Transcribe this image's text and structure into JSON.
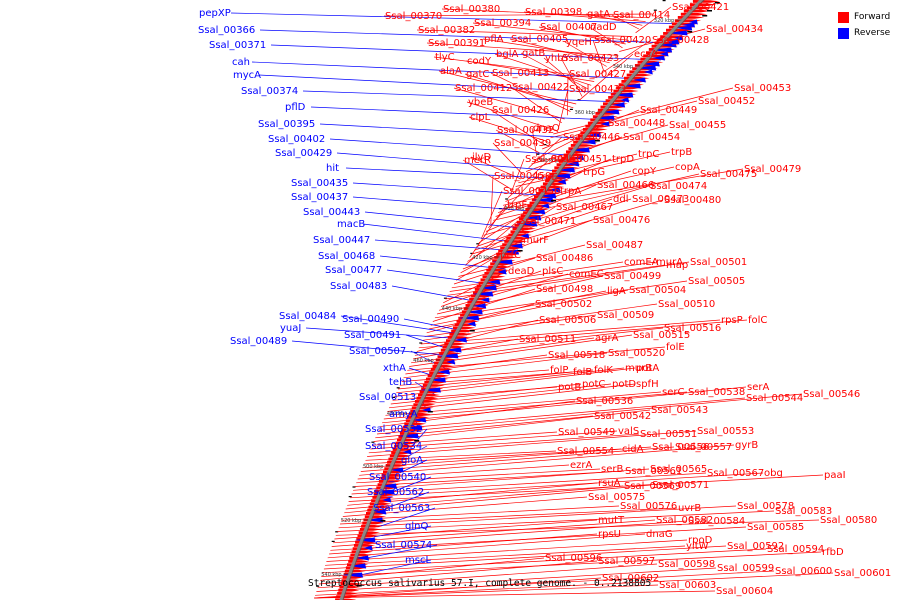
{
  "caption": "Streptococcus salivarius 57.I, complete genome. - 0..2138805",
  "legend": [
    {
      "label": "Forward",
      "color": "#ff0000"
    },
    {
      "label": "Reverse",
      "color": "#0000ff"
    }
  ],
  "colors": {
    "forward": "#ff0000",
    "reverse": "#0000ff",
    "backbone": "#888888"
  },
  "kbp_ticks": [
    "320 kbp",
    "340 kbp",
    "360 kbp",
    "380 kbp",
    "400 kbp",
    "420 kbp",
    "440 kbp",
    "460 kbp",
    "480 kbp",
    "500 kbp",
    "520 kbp",
    "540 kbp"
  ],
  "reverse_labels": [
    "pepXP",
    "Ssal_00366",
    "Ssal_00371",
    "cah",
    "mycA",
    "Ssal_00374",
    "pflD",
    "Ssal_00395",
    "Ssal_00402",
    "Ssal_00429",
    "hit",
    "Ssal_00435",
    "Ssal_00437",
    "Ssal_00443",
    "macB",
    "Ssal_00447",
    "Ssal_00468",
    "Ssal_00477",
    "Ssal_00483",
    "Ssal_00484",
    "yuaJ",
    "Ssal_00490",
    "Ssal_00489",
    "Ssal_00491",
    "Ssal_00507",
    "xthA",
    "tehB",
    "Ssal_00513",
    "amyA",
    "Ssal_00532",
    "Ssal_00534",
    "gloA",
    "Ssal_00540",
    "Ssal_00562",
    "Ssal_00563",
    "glnQ",
    "Ssal_00574",
    "mscL"
  ],
  "forward_labels": [
    "Ssal_00370",
    "Ssal_00380",
    "Ssal_00398",
    "gatA",
    "Ssal_00414",
    "Ssal_00421",
    "Ssal_00382",
    "Ssal_00394",
    "Ssal_00407",
    "nadD",
    "Ssal_00434",
    "Ssal_00391",
    "pflA",
    "Ssal_00405",
    "yqeH",
    "Ssal_00420",
    "Ssal_00428",
    "tlyC",
    "codY",
    "bglA",
    "gatB",
    "yhbY",
    "Ssal_00423",
    "ecsA",
    "alaA",
    "gatC",
    "Ssal_00413",
    "Ssal_00427",
    "Ssal_00412",
    "Ssal_00422",
    "Ssal_00433",
    "ybeB",
    "Ssal_00453",
    "Ssal_00452",
    "clpL",
    "Ssal_00426",
    "Ssal_00449",
    "Ssal_00432",
    "dnaQ",
    "Ssal_00448",
    "Ssal_00455",
    "Ssal_00446",
    "Ssal_00454",
    "Ssal_00439",
    "ilvD",
    "trpC",
    "trpB",
    "merR",
    "Ssal_00445",
    "Ssal_00451",
    "trpD",
    "copA",
    "Ssal_00479",
    "trpG",
    "copY",
    "Ssal_00475",
    "Ssal_00450",
    "trpE",
    "Ssal_00466",
    "Ssal_00474",
    "Ssal_00456",
    "trpA",
    "ddl",
    "Ssal_00473",
    "Ssal_00480",
    "trpF",
    "Ssal_00467",
    "Ssal_00471",
    "Ssal_00476",
    "murF",
    "Ssal_00487",
    "prfC",
    "Ssal_00486",
    "comEA",
    "murA",
    "map",
    "Ssal_00501",
    "deaD",
    "plsC",
    "comEC",
    "Ssal_00499",
    "Ssal_00505",
    "Ssal_00498",
    "ligA",
    "Ssal_00504",
    "Ssal_00502",
    "Ssal_00510",
    "Ssal_00509",
    "rpsP",
    "folC",
    "Ssal_00506",
    "Ssal_00516",
    "Ssal_00511",
    "agrA",
    "Ssal_00515",
    "folE",
    "Ssal_00518",
    "Ssal_00520",
    "folP",
    "folB",
    "folK",
    "murB",
    "potA",
    "potB",
    "potC",
    "potD",
    "spfH",
    "serC",
    "Ssal_00538",
    "serA",
    "Ssal_00536",
    "Ssal_00544",
    "Ssal_00546",
    "Ssal_00542",
    "Ssal_00543",
    "Ssal_00549",
    "valS",
    "Ssal_00551",
    "Ssal_00553",
    "Ssal_00554",
    "cidA",
    "Ssal_00556",
    "Ssal_00557",
    "gyrB",
    "ezrA",
    "serB",
    "Ssal_00561",
    "Ssal_00565",
    "Ssal_00567",
    "obg",
    "paaI",
    "rsuA",
    "Ssal_00569",
    "Ssal_00571",
    "Ssal_00575",
    "Ssal_00576",
    "uvrB",
    "Ssal_00578",
    "Ssal_00583",
    "Ssal_00580",
    "mutT",
    "Ssal_00582",
    "Ssal_00584",
    "Ssal_00585",
    "rpsU",
    "dnaG",
    "rpoD",
    "yitW",
    "Ssal_00592",
    "Ssal_00594",
    "rfbD",
    "Ssal_00596",
    "Ssal_00597",
    "Ssal_00598",
    "Ssal_00599",
    "Ssal_00600",
    "Ssal_00601",
    "Ssal_00602",
    "Ssal_00603",
    "Ssal_00604"
  ]
}
